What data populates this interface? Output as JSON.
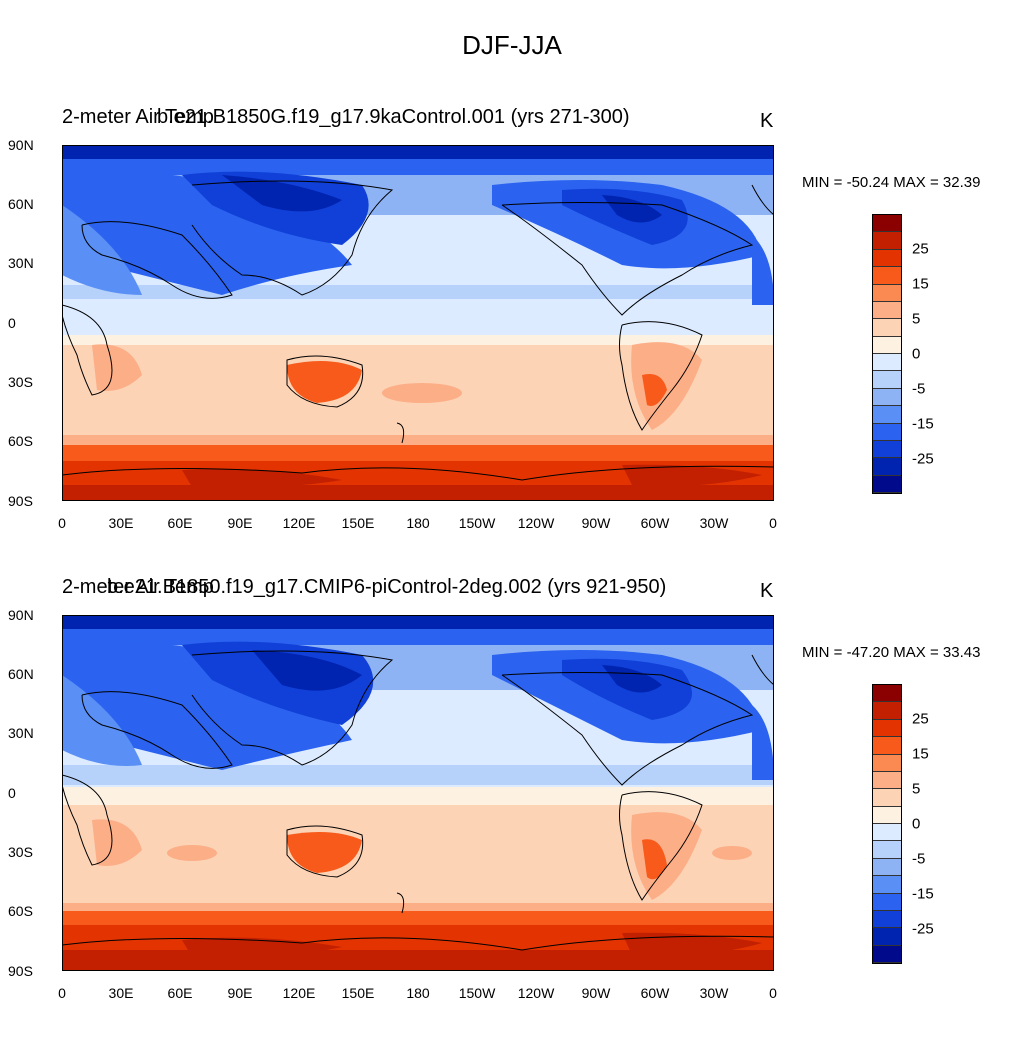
{
  "figure": {
    "title": "DJF-JJA"
  },
  "panels": [
    {
      "left_title": "2-meter Air Temp",
      "center_title": "b.e21.B1850G.f19_g17.9kaControl.001 (yrs 271-300)",
      "units": "K",
      "minmax": "MIN = -50.24 MAX =  32.39"
    },
    {
      "left_title": "2-meter Air Temp",
      "center_title": "b.e21.B1850.f19_g17.CMIP6-piControl-2deg.002 (yrs 921-950)",
      "units": "K",
      "minmax": "MIN = -47.20 MAX =  33.43"
    }
  ],
  "axes": {
    "lat_labels": [
      "90N",
      "60N",
      "30N",
      "0",
      "30S",
      "60S",
      "90S"
    ],
    "lon_labels": [
      "0",
      "30E",
      "60E",
      "90E",
      "120E",
      "150E",
      "180",
      "150W",
      "120W",
      "90W",
      "60W",
      "30W",
      "0"
    ]
  },
  "colorbar": {
    "labels": [
      "25",
      "15",
      "5",
      "0",
      "-5",
      "-15",
      "-25"
    ],
    "colors": [
      "#8b0000",
      "#c22000",
      "#e33300",
      "#f75a1a",
      "#fb8a52",
      "#fcae87",
      "#fdd3b6",
      "#fdf1e2",
      "#dcebff",
      "#b6d2fb",
      "#8eb3f5",
      "#5a8ff5",
      "#2b63f0",
      "#1040d8",
      "#0024b0",
      "#000a8a"
    ]
  }
}
